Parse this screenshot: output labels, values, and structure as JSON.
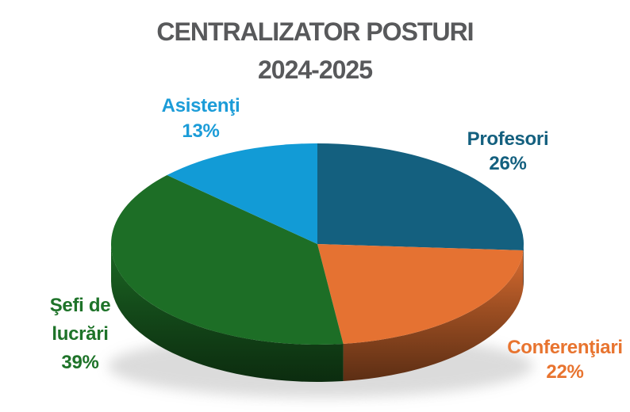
{
  "title": {
    "line1": "CENTRALIZATOR POSTURI",
    "line2": "2024-2025",
    "color": "#58595B"
  },
  "chart_data": {
    "type": "pie",
    "style": "3d",
    "title": "CENTRALIZATOR POSTURI 2024-2025",
    "start_angle": "12 o'clock, clockwise",
    "legend": "none",
    "labels_position": "outside",
    "background": "#FFFFFF",
    "shadow_color": "#9A9A9A",
    "slices": [
      {
        "id": "profesori",
        "label": "Profesori",
        "value_pct": 26,
        "pct_label": "26%",
        "color": "#14607F",
        "label_color": "#14607F"
      },
      {
        "id": "conferentiari",
        "label": "Conferenţiari",
        "value_pct": 22,
        "pct_label": "22%",
        "color": "#E57232",
        "label_color": "#E8742F"
      },
      {
        "id": "sefi-de-lucrari",
        "label": "Şefi de lucrări",
        "value_pct": 39,
        "pct_label": "39%",
        "color": "#1D6E26",
        "label_color": "#1E7329"
      },
      {
        "id": "asistenti",
        "label": "Asistenţi",
        "value_pct": 13,
        "pct_label": "13%",
        "color": "#129BD6",
        "label_color": "#1B9CD8"
      }
    ]
  }
}
